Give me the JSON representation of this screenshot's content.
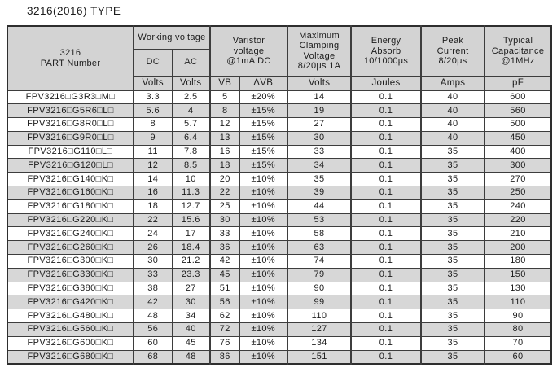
{
  "title": "3216(2016) TYPE",
  "colors": {
    "header_bg": "#d3d3d3",
    "alt_row_bg": "#d7d7d7",
    "border": "#3d3d3d",
    "text": "#1c1c1c"
  },
  "table": {
    "header": {
      "part_number": "3216\nPART Number",
      "working_voltage": "Working voltage",
      "dc": "DC",
      "ac": "AC",
      "varistor_voltage": "Varistor\nvoltage\n@1mA DC",
      "max_clamping": "Maximum\nClamping\nVoltage\n8/20μs 1A",
      "energy_absorb": "Energy\nAbsorb\n10/1000μs",
      "peak_current": "Peak\nCurrent\n8/20μs",
      "typical_capacitance": "Typical\nCapacitance\n@1MHz",
      "units": {
        "dc": "Volts",
        "ac": "Volts",
        "vb": "VB",
        "dvb": "ΔVB",
        "clamping": "Volts",
        "energy": "Joules",
        "current": "Amps",
        "capacitance": "pF"
      }
    },
    "columns": [
      "part-number",
      "dc-volts",
      "ac-volts",
      "vb",
      "delta-vb",
      "clamping-volts",
      "energy-joules",
      "peak-amps",
      "capacitance-pf"
    ],
    "rows": [
      [
        "FPV3216□G3R3□M□",
        "3.3",
        "2.5",
        "5",
        "±20%",
        "14",
        "0.1",
        "40",
        "600"
      ],
      [
        "FPV3216□G5R6□L□",
        "5.6",
        "4",
        "8",
        "±15%",
        "19",
        "0.1",
        "40",
        "560"
      ],
      [
        "FPV3216□G8R0□L□",
        "8",
        "5.7",
        "12",
        "±15%",
        "27",
        "0.1",
        "40",
        "500"
      ],
      [
        "FPV3216□G9R0□L□",
        "9",
        "6.4",
        "13",
        "±15%",
        "30",
        "0.1",
        "40",
        "450"
      ],
      [
        "FPV3216□G110□L□",
        "11",
        "7.8",
        "16",
        "±15%",
        "33",
        "0.1",
        "35",
        "400"
      ],
      [
        "FPV3216□G120□L□",
        "12",
        "8.5",
        "18",
        "±15%",
        "34",
        "0.1",
        "35",
        "300"
      ],
      [
        "FPV3216□G140□K□",
        "14",
        "10",
        "20",
        "±10%",
        "35",
        "0.1",
        "35",
        "270"
      ],
      [
        "FPV3216□G160□K□",
        "16",
        "11.3",
        "22",
        "±10%",
        "39",
        "0.1",
        "35",
        "250"
      ],
      [
        "FPV3216□G180□K□",
        "18",
        "12.7",
        "25",
        "±10%",
        "44",
        "0.1",
        "35",
        "240"
      ],
      [
        "FPV3216□G220□K□",
        "22",
        "15.6",
        "30",
        "±10%",
        "53",
        "0.1",
        "35",
        "220"
      ],
      [
        "FPV3216□G240□K□",
        "24",
        "17",
        "33",
        "±10%",
        "58",
        "0.1",
        "35",
        "210"
      ],
      [
        "FPV3216□G260□K□",
        "26",
        "18.4",
        "36",
        "±10%",
        "63",
        "0.1",
        "35",
        "200"
      ],
      [
        "FPV3216□G300□K□",
        "30",
        "21.2",
        "42",
        "±10%",
        "74",
        "0.1",
        "35",
        "180"
      ],
      [
        "FPV3216□G330□K□",
        "33",
        "23.3",
        "45",
        "±10%",
        "79",
        "0.1",
        "35",
        "150"
      ],
      [
        "FPV3216□G380□K□",
        "38",
        "27",
        "51",
        "±10%",
        "90",
        "0.1",
        "35",
        "130"
      ],
      [
        "FPV3216□G420□K□",
        "42",
        "30",
        "56",
        "±10%",
        "99",
        "0.1",
        "35",
        "110"
      ],
      [
        "FPV3216□G480□K□",
        "48",
        "34",
        "62",
        "±10%",
        "110",
        "0.1",
        "35",
        "90"
      ],
      [
        "FPV3216□G560□K□",
        "56",
        "40",
        "72",
        "±10%",
        "127",
        "0.1",
        "35",
        "80"
      ],
      [
        "FPV3216□G600□K□",
        "60",
        "45",
        "76",
        "±10%",
        "134",
        "0.1",
        "35",
        "70"
      ],
      [
        "FPV3216□G680□K□",
        "68",
        "48",
        "86",
        "±10%",
        "151",
        "0.1",
        "35",
        "60"
      ]
    ]
  }
}
